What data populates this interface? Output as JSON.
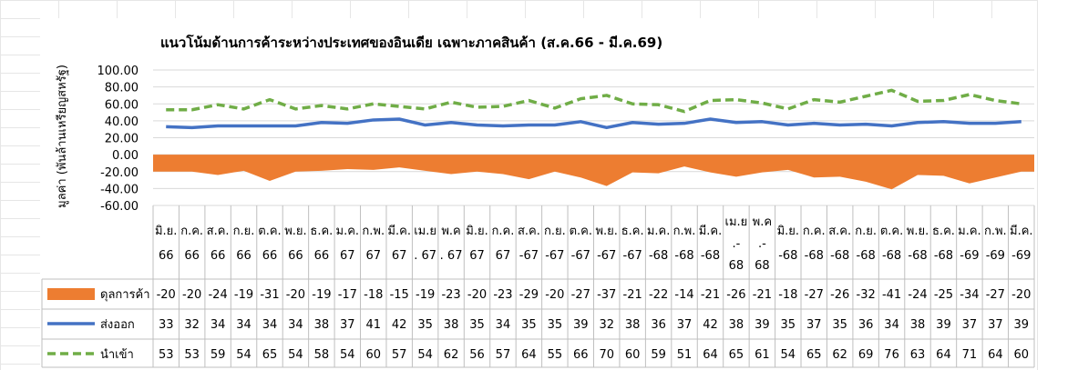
{
  "chart_data": {
    "type": "line",
    "title": "แนวโน้มด้านการค้าระหว่างประเทศของอินเดีย เฉพาะภาคสินค้า (ส.ค.66 - มี.ค.69)",
    "ylabel": "มูลค่า (พันล้านเหรียญสหรัฐ)",
    "ylim": [
      -60,
      100
    ],
    "yticks": [
      "100.00",
      "80.00",
      "60.00",
      "40.00",
      "20.00",
      "0.00",
      "-20.00",
      "-40.00",
      "-60.00"
    ],
    "grid": true,
    "legend_placement": "data-table-left",
    "categories": [
      [
        "มิ.ย.",
        "66"
      ],
      [
        "ก.ค.",
        "66"
      ],
      [
        "ส.ค.",
        "66"
      ],
      [
        "ก.ย.",
        "66"
      ],
      [
        "ต.ค.",
        "66"
      ],
      [
        "พ.ย.",
        "66"
      ],
      [
        "ธ.ค.",
        "66"
      ],
      [
        "ม.ค.",
        "67"
      ],
      [
        "ก.พ.",
        "67"
      ],
      [
        "มี.ค.",
        "67"
      ],
      [
        "เม.ย",
        ". 67"
      ],
      [
        "พ.ค",
        ". 67"
      ],
      [
        "มิ.ย.",
        "67"
      ],
      [
        "ก.ค.",
        "67"
      ],
      [
        "ส.ค.",
        "-67"
      ],
      [
        "ก.ย.",
        "-67"
      ],
      [
        "ต.ค.",
        "-67"
      ],
      [
        "พ.ย.",
        "-67"
      ],
      [
        "ธ.ค.",
        "-67"
      ],
      [
        "ม.ค.",
        "-68"
      ],
      [
        "ก.พ.",
        "-68"
      ],
      [
        "มี.ค.",
        "-68"
      ],
      [
        "เม.ย",
        ".-",
        "68"
      ],
      [
        "พ.ค",
        ".-",
        "68"
      ],
      [
        "มิ.ย.",
        "-68"
      ],
      [
        "ก.ค.",
        "-68"
      ],
      [
        "ส.ค.",
        "-68"
      ],
      [
        "ก.ย.",
        "-68"
      ],
      [
        "ต.ค.",
        "-68"
      ],
      [
        "พ.ย.",
        "-68"
      ],
      [
        "ธ.ค.",
        "-68"
      ],
      [
        "ม.ค.",
        "-69"
      ],
      [
        "ก.พ.",
        "-69"
      ],
      [
        "มี.ค.",
        "-69"
      ]
    ],
    "series": [
      {
        "name": "ดุลการค้า",
        "kind": "area",
        "color": "#ED7D31",
        "values": [
          -20,
          -20,
          -24,
          -19,
          -31,
          -20,
          -19,
          -17,
          -18,
          -15,
          -19,
          -23,
          -20,
          -23,
          -29,
          -20,
          -27,
          -37,
          -21,
          -22,
          -14,
          -21,
          -26,
          -21,
          -18,
          -27,
          -26,
          -32,
          -41,
          -24,
          -25,
          -34,
          -27,
          -20
        ]
      },
      {
        "name": "ส่งออก",
        "kind": "line",
        "color": "#4472C4",
        "values": [
          33,
          32,
          34,
          34,
          34,
          34,
          38,
          37,
          41,
          42,
          35,
          38,
          35,
          34,
          35,
          35,
          39,
          32,
          38,
          36,
          37,
          42,
          38,
          39,
          35,
          37,
          35,
          36,
          34,
          38,
          39,
          37,
          37,
          39
        ]
      },
      {
        "name": "นำเข้า",
        "kind": "dashed-line",
        "color": "#70AD47",
        "values": [
          53,
          53,
          59,
          54,
          65,
          54,
          58,
          54,
          60,
          57,
          54,
          62,
          56,
          57,
          64,
          55,
          66,
          70,
          60,
          59,
          51,
          64,
          65,
          61,
          54,
          65,
          62,
          69,
          76,
          63,
          64,
          71,
          64,
          60
        ]
      }
    ]
  }
}
